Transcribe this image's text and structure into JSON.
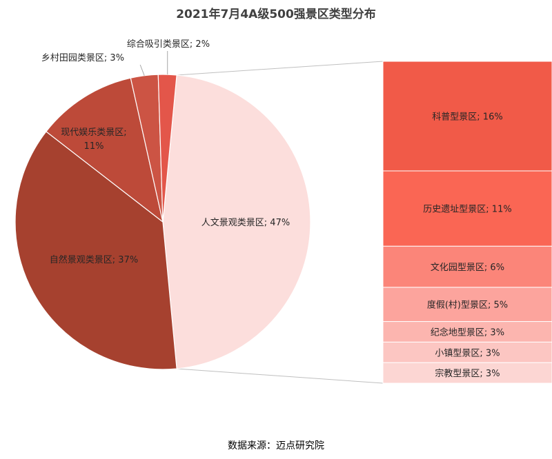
{
  "chart_data": {
    "type": "bar-of-pie",
    "title": "2021年7月4A级500强景区类型分布",
    "source": "数据来源：迈点研究院",
    "pie": [
      {
        "name": "人文景观类景区",
        "value": 47,
        "label": "人文景观类景区; 47%",
        "color": "#FCDEDC"
      },
      {
        "name": "自然景观类景区",
        "value": 37,
        "label": "自然景观类景区; 37%",
        "color": "#A6412F"
      },
      {
        "name": "现代娱乐类景区",
        "value": 11,
        "label": [
          "现代娱乐类景区;",
          "11%"
        ],
        "color": "#BD4A39"
      },
      {
        "name": "乡村田园类景区",
        "value": 3,
        "label": "乡村田园类景区; 3%",
        "color": "#CC5444"
      },
      {
        "name": "综合吸引类景区",
        "value": 2,
        "label": "综合吸引类景区; 2%",
        "color": "#E3564A"
      }
    ],
    "breakdown_of": "人文景观类景区",
    "bar": [
      {
        "name": "科普型景区",
        "value": 16,
        "label": "科普型景区; 16%",
        "color": "#F15A48"
      },
      {
        "name": "历史遗址型景区",
        "value": 11,
        "label": "历史遗址型景区; 11%",
        "color": "#FA6654"
      },
      {
        "name": "文化园型景区",
        "value": 6,
        "label": "文化园型景区; 6%",
        "color": "#FB8579"
      },
      {
        "name": "度假(村)型景区",
        "value": 5,
        "label": "度假(村)型景区; 5%",
        "color": "#FCA49D"
      },
      {
        "name": "纪念地型景区",
        "value": 3,
        "label": "纪念地型景区; 3%",
        "color": "#FCB5AF"
      },
      {
        "name": "小镇型景区",
        "value": 3,
        "label": "小镇型景区; 3%",
        "color": "#FCC6C2"
      },
      {
        "name": "宗教型景区",
        "value": 3,
        "label": "宗教型景区; 3%",
        "color": "#FCD6D3"
      }
    ]
  }
}
